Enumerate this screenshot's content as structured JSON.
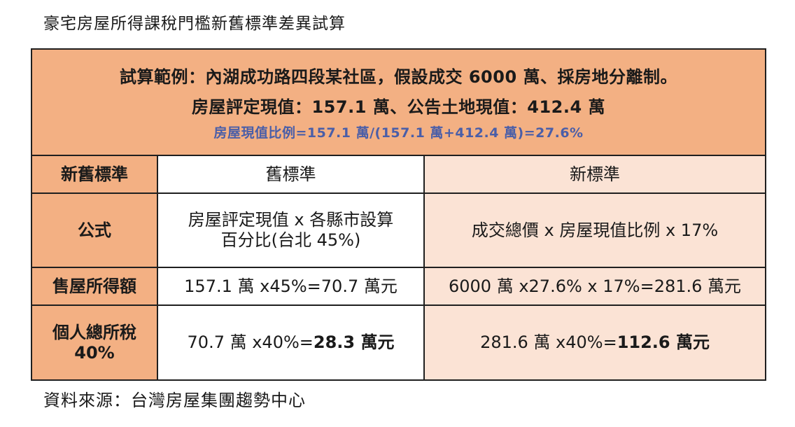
{
  "title": "豪宅房屋所得課稅門檻新舊標準差異試算",
  "example": {
    "line1": "試算範例：內湖成功路四段某社區，假設成交 6000 萬、採房地分離制。",
    "line2": "房屋評定現值：157.1 萬、公告土地現值：412.4 萬",
    "line3": "房屋現值比例=157.1 萬/(157.1 萬+412.4 萬)=27.6%"
  },
  "header": {
    "label": "新舊標準",
    "old": "舊標準",
    "new": "新標準"
  },
  "formula": {
    "label": "公式",
    "old_line1": "房屋評定現值 x 各縣市設算",
    "old_line2": "百分比(台北 45%)",
    "new": "成交總價 x 房屋現值比例 x 17%"
  },
  "income": {
    "label": "售屋所得額",
    "old": "157.1 萬 x45%=70.7 萬元",
    "new": "6000 萬 x27.6% x 17%=281.6 萬元"
  },
  "tax": {
    "label_line1": "個人總所稅",
    "label_line2": "40%",
    "old_prefix": "70.7 萬 x40%=",
    "old_result": "28.3 萬元",
    "new_prefix": "281.6 萬 x40%=",
    "new_result": "112.6 萬元"
  },
  "source": "資料來源：台灣房屋集團趨勢中心",
  "colors": {
    "orange": "#f3b083",
    "light_peach": "#fbe3d5",
    "blue_text": "#4a5ea8"
  }
}
